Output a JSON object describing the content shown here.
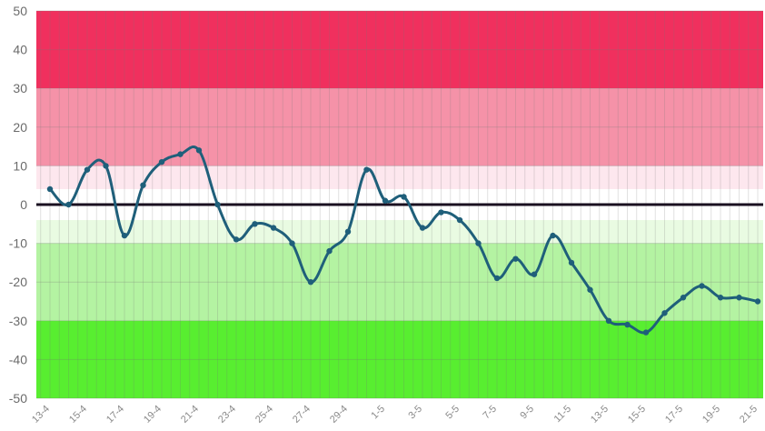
{
  "chart_data": {
    "type": "line",
    "title": "",
    "xlabel": "",
    "ylabel": "",
    "ylim": [
      -50,
      50
    ],
    "yticks": [
      50,
      40,
      30,
      20,
      10,
      0,
      -10,
      -20,
      -30,
      -40,
      -50
    ],
    "grid": true,
    "legend": "none",
    "line_color": "#1f5f7a",
    "zero_line_color": "#1a1020",
    "bands": [
      {
        "from": 30,
        "to": 50,
        "color": "#f0305e"
      },
      {
        "from": 10,
        "to": 30,
        "color": "#f592a8"
      },
      {
        "from": 4,
        "to": 10,
        "color": "#fde7ee"
      },
      {
        "from": -4,
        "to": 4,
        "color": "#ffffff"
      },
      {
        "from": -10,
        "to": -4,
        "color": "#e9fbe2"
      },
      {
        "from": -30,
        "to": -10,
        "color": "#b4f3a2"
      },
      {
        "from": -50,
        "to": -30,
        "color": "#58ee30"
      }
    ],
    "x_tick_labels": [
      "13-4",
      "15-4",
      "17-4",
      "19-4",
      "21-4",
      "23-4",
      "25-4",
      "27-4",
      "29-4",
      "1-5",
      "3-5",
      "5-5",
      "7-5",
      "9-5",
      "11-5",
      "13-5",
      "15-5",
      "17-5",
      "19-5",
      "21-5"
    ],
    "x": [
      "13-4",
      "14-4",
      "15-4",
      "16-4",
      "17-4",
      "18-4",
      "19-4",
      "20-4",
      "21-4",
      "22-4",
      "23-4",
      "24-4",
      "25-4",
      "26-4",
      "27-4",
      "28-4",
      "29-4",
      "30-4",
      "1-5",
      "2-5",
      "3-5",
      "4-5",
      "5-5",
      "6-5",
      "7-5",
      "8-5",
      "9-5",
      "10-5",
      "11-5",
      "12-5",
      "13-5",
      "14-5",
      "15-5",
      "16-5",
      "17-5",
      "18-5",
      "19-5",
      "20-5",
      "21-5"
    ],
    "series": [
      {
        "values": [
          4,
          0,
          9,
          10,
          -8,
          5,
          11,
          13,
          14,
          0,
          -9,
          -5,
          -6,
          -10,
          -20,
          -12,
          -7,
          9,
          1,
          2,
          -6,
          -2,
          -4,
          -10,
          -19,
          -14,
          -18,
          -8,
          -15,
          -22,
          -30,
          -31,
          -33,
          -28,
          -24,
          -21,
          -24,
          -24,
          -25
        ]
      }
    ]
  }
}
